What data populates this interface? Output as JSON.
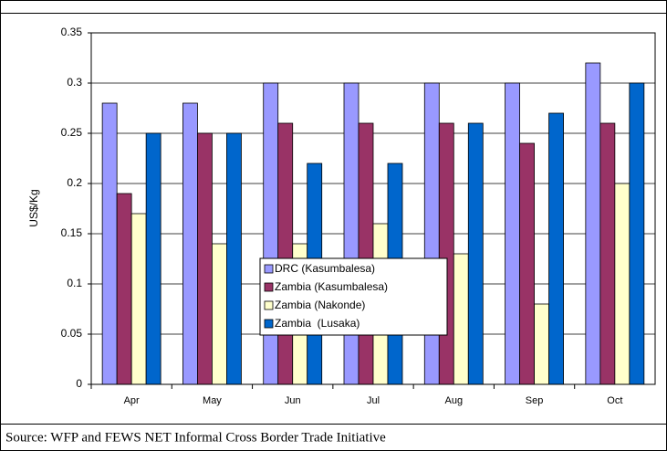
{
  "chart_data": {
    "type": "bar",
    "categories": [
      "Apr",
      "May",
      "Jun",
      "Jul",
      "Aug",
      "Sep",
      "Oct"
    ],
    "series": [
      {
        "name": "DRC (Kasumbalesa)",
        "color": "#9999ff",
        "values": [
          0.28,
          0.28,
          0.3,
          0.3,
          0.3,
          0.3,
          0.32
        ]
      },
      {
        "name": "Zambia (Kasumbalesa)",
        "color": "#993366",
        "values": [
          0.19,
          0.25,
          0.26,
          0.26,
          0.26,
          0.24,
          0.26
        ]
      },
      {
        "name": "Zambia (Nakonde)",
        "color": "#ffffcc",
        "values": [
          0.17,
          0.14,
          0.14,
          0.16,
          0.13,
          0.08,
          0.2
        ]
      },
      {
        "name": "Zambia  (Lusaka)",
        "color": "#0066cc",
        "values": [
          0.25,
          0.25,
          0.22,
          0.22,
          0.26,
          0.27,
          0.3
        ]
      }
    ],
    "ylabel": "US$/Kg",
    "ylim": [
      0,
      0.35
    ],
    "yticks": [
      0,
      0.05,
      0.1,
      0.15,
      0.2,
      0.25,
      0.3,
      0.35
    ],
    "grid": true,
    "source": "Source: WFP and FEWS NET Informal Cross Border Trade Initiative"
  }
}
